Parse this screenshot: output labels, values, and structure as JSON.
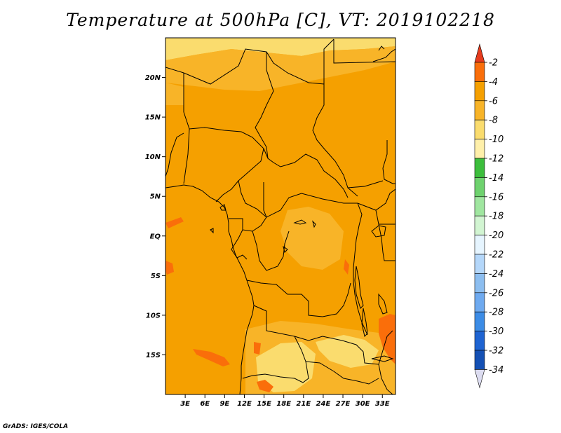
{
  "title": "Temperature at 500hPa [C], VT: 2019102218",
  "credit": "GrADS: IGES/COLA",
  "map": {
    "lon_range": [
      0,
      35
    ],
    "lat_range": [
      -20,
      25
    ],
    "lat_ticks": [
      {
        "value": 20,
        "label": "20N"
      },
      {
        "value": 15,
        "label": "15N"
      },
      {
        "value": 10,
        "label": "10N"
      },
      {
        "value": 5,
        "label": "5N"
      },
      {
        "value": 0,
        "label": "EQ"
      },
      {
        "value": -5,
        "label": "5S"
      },
      {
        "value": -10,
        "label": "10S"
      },
      {
        "value": -15,
        "label": "15S"
      }
    ],
    "lon_ticks": [
      {
        "value": 3,
        "label": "3E"
      },
      {
        "value": 6,
        "label": "6E"
      },
      {
        "value": 9,
        "label": "9E"
      },
      {
        "value": 12,
        "label": "12E"
      },
      {
        "value": 15,
        "label": "15E"
      },
      {
        "value": 18,
        "label": "18E"
      },
      {
        "value": 21,
        "label": "21E"
      },
      {
        "value": 24,
        "label": "24E"
      },
      {
        "value": 27,
        "label": "27E"
      },
      {
        "value": 30,
        "label": "30E"
      },
      {
        "value": 33,
        "label": "33E"
      }
    ]
  },
  "colorbar": {
    "labels": [
      "-2",
      "-4",
      "-6",
      "-8",
      "-10",
      "-12",
      "-14",
      "-16",
      "-18",
      "-20",
      "-22",
      "-24",
      "-26",
      "-28",
      "-30",
      "-32",
      "-34"
    ],
    "colors": [
      "#f0401e",
      "#fa6e0a",
      "#f5a000",
      "#f8b428",
      "#fadc6e",
      "#fff0aa",
      "#3cbe3c",
      "#6ed26e",
      "#a0e6a0",
      "#d2f5d2",
      "#e6f5ff",
      "#b4d7fa",
      "#8cbef0",
      "#6eaaf0",
      "#3c8ce6",
      "#1e64d2",
      "#1450b4",
      "#0a1e78"
    ],
    "top_arrow_color": "#e63c1e",
    "bottom_arrow_color": "#dcdcf0"
  },
  "colors": {
    "base_field": "#f5a000",
    "warm_patch": "#fa6e0a",
    "cool_patch": "#f8b428",
    "cooler_patch": "#fadc6e",
    "border": "#000000"
  }
}
